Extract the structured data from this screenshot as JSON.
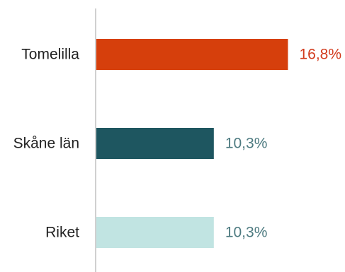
{
  "chart_data": {
    "type": "bar",
    "orientation": "horizontal",
    "categories": [
      "Tomelilla",
      "Skåne län",
      "Riket"
    ],
    "values": [
      16.8,
      10.3,
      10.3
    ],
    "value_labels": [
      "16,8%",
      "10,3%",
      "10,3%"
    ],
    "bar_colors": [
      "#d63f0c",
      "#1e5660",
      "#c1e4e2"
    ],
    "value_label_colors": [
      "#d23a1c",
      "#4d7a80",
      "#4d7a80"
    ],
    "title": "",
    "xlabel": "",
    "ylabel": "",
    "xlim": [
      0,
      20
    ],
    "grid": false,
    "legend": "none"
  }
}
